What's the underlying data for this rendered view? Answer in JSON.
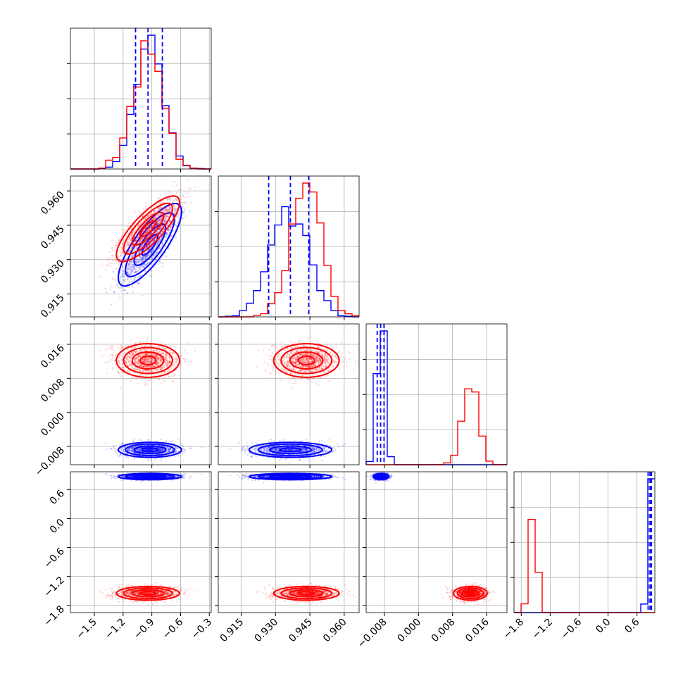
{
  "chart_data": {
    "type": "corner",
    "colors": {
      "blue": "#0000ff",
      "red": "#ff0000"
    },
    "grid": true,
    "series": [
      {
        "color": "#0000ff",
        "mean": [
          -0.92,
          0.9365,
          -0.0088,
          0.87
        ],
        "sd": [
          0.15,
          0.0082,
          0.0008,
          0.03
        ],
        "corr01": 0.8
      },
      {
        "color": "#ff0000",
        "mean": [
          -0.94,
          0.9435,
          0.0122,
          -1.55
        ],
        "sd": [
          0.15,
          0.0065,
          0.0018,
          0.065
        ],
        "corr01": 0.8
      }
    ],
    "parameters": [
      {
        "range": [
          -1.75,
          -0.28
        ],
        "ticks": [
          -1.5,
          -1.2,
          -0.9,
          -0.6,
          -0.3
        ],
        "tick_labels": [
          "−1.5",
          "−1.2",
          "−0.9",
          "−0.6",
          "−0.3"
        ]
      },
      {
        "range": [
          0.905,
          0.9665
        ],
        "ticks": [
          0.915,
          0.93,
          0.945,
          0.96
        ],
        "tick_labels": [
          "0.915",
          "0.930",
          "0.945",
          "0.960"
        ]
      },
      {
        "range": [
          -0.0123,
          0.0208
        ],
        "ticks": [
          -0.008,
          0.0,
          0.008,
          0.016
        ],
        "tick_labels": [
          "−0.008",
          "0.000",
          "0.008",
          "0.016"
        ]
      },
      {
        "range": [
          -1.95,
          0.97
        ],
        "ticks": [
          -1.8,
          -1.2,
          -0.6,
          0.0,
          0.6
        ],
        "tick_labels": [
          "−1.8",
          "−1.2",
          "−0.6",
          "0.0",
          "0.6"
        ]
      }
    ],
    "y_axis_ticks": [
      {
        "row": 1,
        "ticks": [
          0.915,
          0.93,
          0.945,
          0.96
        ],
        "tick_labels": [
          "0.915",
          "0.930",
          "0.945",
          "0.960"
        ]
      },
      {
        "row": 2,
        "ticks": [
          -0.008,
          0.0,
          0.008,
          0.016
        ],
        "tick_labels": [
          "−0.008",
          "0.000",
          "0.008",
          "0.016"
        ]
      },
      {
        "row": 3,
        "ticks": [
          -1.8,
          -1.2,
          -0.6,
          0.0,
          0.6
        ],
        "tick_labels": [
          "−1.8",
          "−1.2",
          "−0.6",
          "0.0",
          "0.6"
        ]
      }
    ],
    "quantile_lines": [
      {
        "param": 0,
        "color": "#0000ff",
        "values": [
          -1.07,
          -0.94,
          -0.79
        ]
      },
      {
        "param": 1,
        "color": "#0000ff",
        "values": [
          0.927,
          0.9365,
          0.9445
        ]
      },
      {
        "param": 2,
        "color": "#0000ff",
        "values": [
          -0.0097,
          -0.0089,
          -0.0081
        ]
      },
      {
        "param": 3,
        "color": "#0000ff",
        "values": [
          0.83,
          0.87,
          0.9
        ]
      }
    ]
  }
}
